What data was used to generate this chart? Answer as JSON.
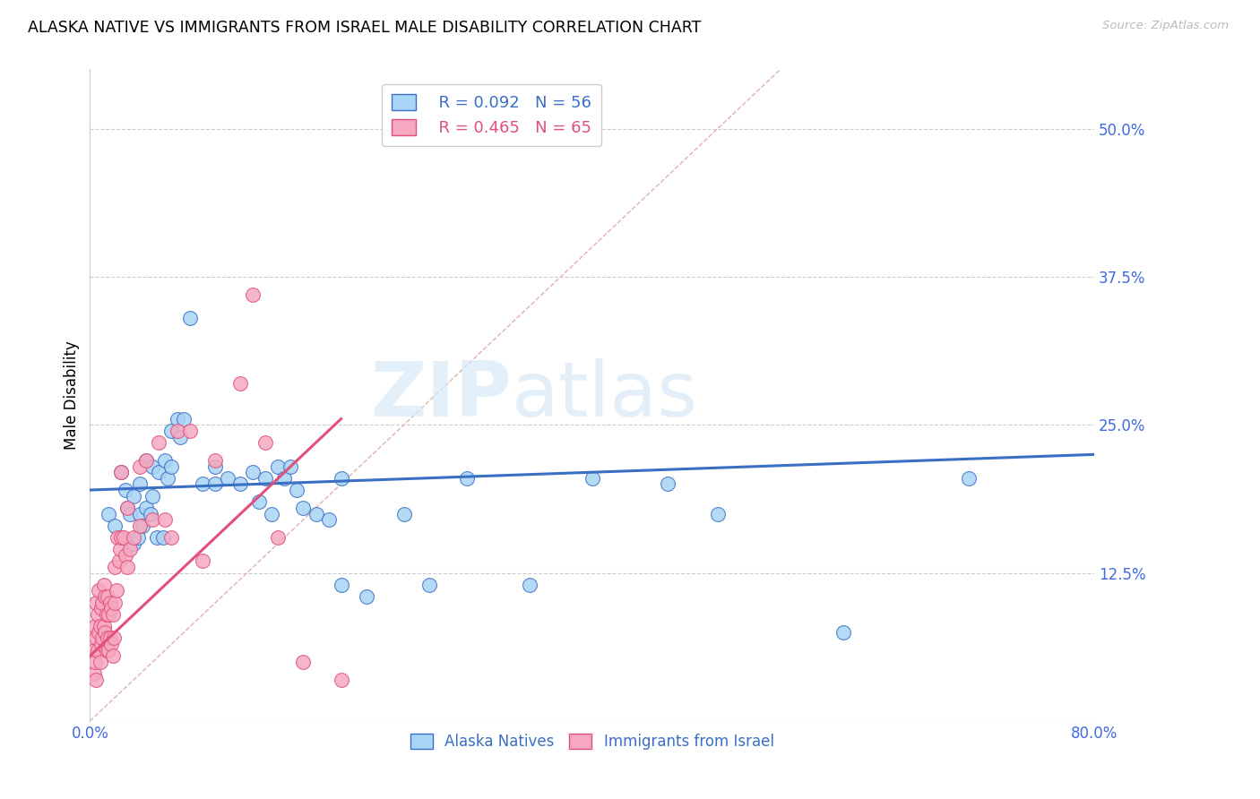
{
  "title": "ALASKA NATIVE VS IMMIGRANTS FROM ISRAEL MALE DISABILITY CORRELATION CHART",
  "source": "Source: ZipAtlas.com",
  "ylabel": "Male Disability",
  "xlim": [
    0.0,
    0.8
  ],
  "ylim": [
    0.0,
    0.55
  ],
  "xticks": [
    0.0,
    0.1,
    0.2,
    0.3,
    0.4,
    0.5,
    0.6,
    0.7,
    0.8
  ],
  "xticklabels": [
    "0.0%",
    "",
    "",
    "",
    "",
    "",
    "",
    "",
    "80.0%"
  ],
  "yticks": [
    0.0,
    0.125,
    0.25,
    0.375,
    0.5
  ],
  "yticklabels": [
    "",
    "12.5%",
    "25.0%",
    "37.5%",
    "50.0%"
  ],
  "blue_R": 0.092,
  "blue_N": 56,
  "pink_R": 0.465,
  "pink_N": 65,
  "blue_color": "#a8d4f5",
  "pink_color": "#f5a8c0",
  "blue_line_color": "#3a6fc4",
  "pink_line_color": "#e0507a",
  "tick_color": "#4169E1",
  "grid_color": "#cccccc",
  "watermark_zip": "ZIP",
  "watermark_atlas": "atlas",
  "blue_scatter_x": [
    0.015,
    0.02,
    0.025,
    0.028,
    0.03,
    0.032,
    0.035,
    0.035,
    0.038,
    0.04,
    0.04,
    0.042,
    0.045,
    0.045,
    0.048,
    0.05,
    0.05,
    0.053,
    0.055,
    0.058,
    0.06,
    0.062,
    0.065,
    0.065,
    0.07,
    0.072,
    0.075,
    0.08,
    0.09,
    0.1,
    0.1,
    0.11,
    0.12,
    0.13,
    0.135,
    0.14,
    0.145,
    0.15,
    0.155,
    0.16,
    0.165,
    0.17,
    0.18,
    0.19,
    0.2,
    0.2,
    0.22,
    0.25,
    0.27,
    0.3,
    0.35,
    0.4,
    0.46,
    0.5,
    0.6,
    0.7
  ],
  "blue_scatter_y": [
    0.175,
    0.165,
    0.21,
    0.195,
    0.18,
    0.175,
    0.19,
    0.15,
    0.155,
    0.2,
    0.175,
    0.165,
    0.22,
    0.18,
    0.175,
    0.215,
    0.19,
    0.155,
    0.21,
    0.155,
    0.22,
    0.205,
    0.215,
    0.245,
    0.255,
    0.24,
    0.255,
    0.34,
    0.2,
    0.2,
    0.215,
    0.205,
    0.2,
    0.21,
    0.185,
    0.205,
    0.175,
    0.215,
    0.205,
    0.215,
    0.195,
    0.18,
    0.175,
    0.17,
    0.205,
    0.115,
    0.105,
    0.175,
    0.115,
    0.205,
    0.115,
    0.205,
    0.2,
    0.175,
    0.075,
    0.205
  ],
  "pink_scatter_x": [
    0.003,
    0.003,
    0.004,
    0.004,
    0.005,
    0.005,
    0.005,
    0.006,
    0.006,
    0.007,
    0.007,
    0.008,
    0.008,
    0.009,
    0.009,
    0.01,
    0.01,
    0.011,
    0.011,
    0.012,
    0.012,
    0.013,
    0.013,
    0.014,
    0.014,
    0.015,
    0.015,
    0.016,
    0.016,
    0.017,
    0.017,
    0.018,
    0.018,
    0.019,
    0.02,
    0.02,
    0.021,
    0.022,
    0.023,
    0.024,
    0.025,
    0.025,
    0.027,
    0.028,
    0.03,
    0.03,
    0.032,
    0.035,
    0.04,
    0.04,
    0.045,
    0.05,
    0.055,
    0.06,
    0.065,
    0.07,
    0.08,
    0.09,
    0.1,
    0.12,
    0.13,
    0.14,
    0.15,
    0.17,
    0.2
  ],
  "pink_scatter_y": [
    0.06,
    0.04,
    0.08,
    0.05,
    0.1,
    0.07,
    0.035,
    0.09,
    0.06,
    0.11,
    0.075,
    0.08,
    0.05,
    0.095,
    0.065,
    0.1,
    0.07,
    0.115,
    0.08,
    0.105,
    0.075,
    0.09,
    0.06,
    0.105,
    0.07,
    0.09,
    0.06,
    0.1,
    0.07,
    0.095,
    0.065,
    0.09,
    0.055,
    0.07,
    0.13,
    0.1,
    0.11,
    0.155,
    0.135,
    0.145,
    0.155,
    0.21,
    0.155,
    0.14,
    0.18,
    0.13,
    0.145,
    0.155,
    0.215,
    0.165,
    0.22,
    0.17,
    0.235,
    0.17,
    0.155,
    0.245,
    0.245,
    0.135,
    0.22,
    0.285,
    0.36,
    0.235,
    0.155,
    0.05,
    0.035
  ],
  "diag_line_x": [
    0.0,
    0.55
  ],
  "diag_line_y": [
    0.0,
    0.55
  ]
}
